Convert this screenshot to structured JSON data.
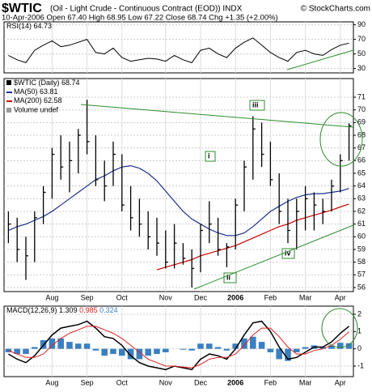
{
  "header": {
    "title": "$WTIC",
    "title_detail": "(Oil - Light Crude - Continuous Contract (EOD)) INDX",
    "credit": "© StockCharts.com",
    "subtitle": "10-Apr-2006  Open 67.40  High 68.95  Low 67.22  Close 68.74  Chg +1.35 (+2.00%)"
  },
  "chart_data": [
    {
      "type": "line",
      "label": "RSI(14)",
      "color": "#000000",
      "values": [
        48,
        42,
        38,
        55,
        62,
        68,
        60,
        62,
        66,
        70,
        52,
        50,
        58,
        45,
        40,
        42,
        44,
        43,
        40,
        48,
        42,
        38,
        55,
        58,
        50,
        45,
        58,
        66,
        72,
        62,
        52,
        45,
        40,
        52,
        55,
        50,
        48,
        56,
        62,
        64.73
      ],
      "ylim": [
        24,
        94
      ],
      "yticks": [
        30,
        50,
        70,
        90
      ],
      "grid": true
    },
    {
      "type": "ohlc",
      "name": "$WTIC (Daily)",
      "color": "#000000",
      "volume_label": "Volume undef",
      "categories": [
        null,
        null,
        null,
        null,
        null,
        "Aug",
        null,
        null,
        null,
        "Sep",
        null,
        null,
        null,
        "Oct",
        null,
        null,
        null,
        null,
        "Nov",
        null,
        null,
        null,
        "Dec",
        null,
        null,
        null,
        "2006",
        null,
        null,
        null,
        "Feb",
        null,
        null,
        null,
        "Mar",
        null,
        null,
        null,
        "Apr",
        null
      ],
      "high": [
        62,
        61.5,
        60,
        62,
        64,
        67,
        68,
        67.5,
        68.5,
        70.8,
        68,
        66,
        67.5,
        66.5,
        64,
        63,
        62,
        61.5,
        60.5,
        61,
        59.5,
        59,
        61,
        62.8,
        61.5,
        59.5,
        63,
        66,
        69.5,
        69,
        67.5,
        65,
        63,
        63,
        64,
        63.5,
        63,
        64.5,
        66.5,
        68.95
      ],
      "low": [
        59.5,
        58,
        56.6,
        58,
        61,
        63,
        64.5,
        63.5,
        65,
        66.5,
        64,
        62.8,
        64,
        62,
        60.5,
        60,
        59,
        58.5,
        57.5,
        57.5,
        57.8,
        56,
        57.2,
        59.5,
        58.5,
        57.6,
        59,
        62,
        64.5,
        65.5,
        64,
        61,
        59.5,
        59,
        60.5,
        60.5,
        61,
        62,
        63.5,
        66
      ],
      "close": [
        61,
        59,
        58.5,
        61.5,
        63.5,
        66.5,
        65.5,
        66,
        68,
        67.5,
        64.5,
        64,
        66.5,
        62.5,
        61.5,
        61,
        60,
        59.5,
        58,
        59.5,
        58.3,
        57.5,
        60.5,
        61,
        59,
        59.2,
        62.5,
        65.5,
        68.5,
        66.5,
        64.5,
        62,
        60.5,
        62,
        63,
        62.5,
        62,
        64,
        66,
        68.74
      ],
      "series": [
        {
          "name": "MA(50)",
          "color": "#1c2e8c",
          "values": [
            60.5,
            60.8,
            61,
            61.3,
            61.6,
            62,
            62.5,
            63,
            63.5,
            64,
            64.5,
            64.8,
            65.2,
            65.5,
            65.6,
            65.4,
            65,
            64.4,
            63.6,
            62.8,
            62,
            61.4,
            61,
            60.6,
            60.3,
            60.1,
            60.1,
            60.3,
            60.8,
            61.4,
            62,
            62.4,
            62.8,
            63.1,
            63.3,
            63.4,
            63.4,
            63.5,
            63.6,
            63.81
          ]
        },
        {
          "name": "MA(200)",
          "color": "#cc0000",
          "values": [
            null,
            null,
            null,
            null,
            null,
            null,
            null,
            null,
            null,
            null,
            null,
            null,
            null,
            null,
            null,
            null,
            null,
            57.4,
            57.6,
            57.8,
            58.0,
            58.2,
            58.5,
            58.7,
            58.9,
            59.1,
            59.3,
            59.6,
            59.9,
            60.2,
            60.5,
            60.8,
            61.0,
            61.3,
            61.5,
            61.7,
            61.9,
            62.1,
            62.35,
            62.58
          ]
        }
      ],
      "annotations": [
        "i",
        "ii",
        "iii",
        "iv"
      ],
      "ylim": [
        55.68,
        72.47
      ],
      "yticks": [
        56,
        57,
        58,
        59,
        60,
        61,
        62,
        63,
        64,
        65,
        66,
        67,
        68,
        69,
        70,
        71
      ],
      "grid": true
    },
    {
      "type": "macd",
      "label": "MACD(12,26,9)",
      "categories": [
        null,
        null,
        null,
        null,
        null,
        "Aug",
        null,
        null,
        null,
        "Sep",
        null,
        null,
        null,
        "Oct",
        null,
        null,
        null,
        null,
        "Nov",
        null,
        null,
        null,
        "Dec",
        null,
        null,
        null,
        "2006",
        null,
        null,
        null,
        "Feb",
        null,
        null,
        null,
        "Mar",
        null,
        null,
        null,
        "Apr",
        null
      ],
      "series": [
        {
          "color": "#000000",
          "values": [
            -0.3,
            -0.6,
            -0.8,
            -0.4,
            0.2,
            0.8,
            1.2,
            1.3,
            1.4,
            1.6,
            1.2,
            0.7,
            0.6,
            0.2,
            -0.4,
            -0.8,
            -1.0,
            -1.1,
            -1.2,
            -1.0,
            -1.1,
            -1.2,
            -0.6,
            -0.3,
            -0.4,
            -0.6,
            0.0,
            0.8,
            1.5,
            1.6,
            1.0,
            0.1,
            -0.6,
            -0.5,
            -0.2,
            0.1,
            0.1,
            0.4,
            0.9,
            1.309
          ]
        },
        {
          "color": "#e02020",
          "values": [
            -0.1,
            -0.3,
            -0.5,
            -0.5,
            -0.3,
            0.2,
            0.6,
            0.9,
            1.1,
            1.3,
            1.3,
            1.1,
            0.9,
            0.6,
            0.2,
            -0.2,
            -0.6,
            -0.8,
            -1.0,
            -1.0,
            -1.05,
            -1.1,
            -0.9,
            -0.6,
            -0.5,
            -0.5,
            -0.3,
            0.2,
            0.8,
            1.2,
            1.2,
            0.7,
            0.1,
            -0.3,
            -0.3,
            -0.1,
            0.0,
            0.2,
            0.55,
            0.985
          ]
        }
      ],
      "histogram": {
        "color": "#3a7fc0",
        "values": [
          -0.2,
          -0.3,
          -0.3,
          0.1,
          0.5,
          0.6,
          0.6,
          0.4,
          0.3,
          0.3,
          -0.1,
          -0.4,
          -0.3,
          -0.4,
          -0.6,
          -0.6,
          -0.4,
          -0.3,
          -0.2,
          0,
          -0.05,
          -0.1,
          0.3,
          0.3,
          0.1,
          -0.1,
          0.3,
          0.6,
          0.7,
          0.4,
          -0.2,
          -0.6,
          -0.7,
          -0.2,
          0.1,
          0.2,
          0.1,
          0.2,
          0.35,
          0.324
        ]
      },
      "ylim": [
        -1.61,
        2.47
      ],
      "yticks": [
        -1,
        0,
        1,
        2
      ],
      "grid": true
    }
  ]
}
